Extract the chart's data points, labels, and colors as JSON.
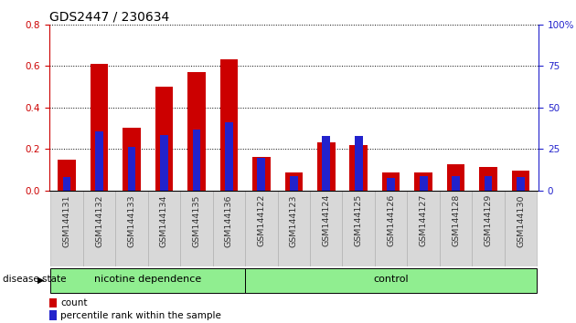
{
  "title": "GDS2447 / 230634",
  "samples": [
    "GSM144131",
    "GSM144132",
    "GSM144133",
    "GSM144134",
    "GSM144135",
    "GSM144136",
    "GSM144122",
    "GSM144123",
    "GSM144124",
    "GSM144125",
    "GSM144126",
    "GSM144127",
    "GSM144128",
    "GSM144129",
    "GSM144130"
  ],
  "count_values": [
    0.15,
    0.61,
    0.3,
    0.5,
    0.57,
    0.63,
    0.16,
    0.085,
    0.23,
    0.22,
    0.085,
    0.085,
    0.125,
    0.115,
    0.095
  ],
  "percentile_values": [
    8.0,
    35.5,
    26.5,
    33.5,
    36.5,
    41.0,
    19.5,
    8.5,
    33.0,
    33.0,
    7.5,
    8.5,
    8.5,
    8.5,
    8.0
  ],
  "ylim_left": [
    0.0,
    0.8
  ],
  "ylim_right": [
    0,
    100
  ],
  "yticks_left": [
    0.0,
    0.2,
    0.4,
    0.6,
    0.8
  ],
  "yticks_right": [
    0,
    25,
    50,
    75,
    100
  ],
  "count_color": "#cc0000",
  "percentile_color": "#2222cc",
  "bar_width": 0.55,
  "group1_label": "nicotine dependence",
  "group2_label": "control",
  "group1_count": 6,
  "group2_count": 9,
  "group_color": "#90ee90",
  "xlabel_label": "disease state",
  "legend_count_label": "count",
  "legend_percentile_label": "percentile rank within the sample",
  "grid_color": "#000000",
  "title_fontsize": 10,
  "tick_fontsize": 7.5
}
